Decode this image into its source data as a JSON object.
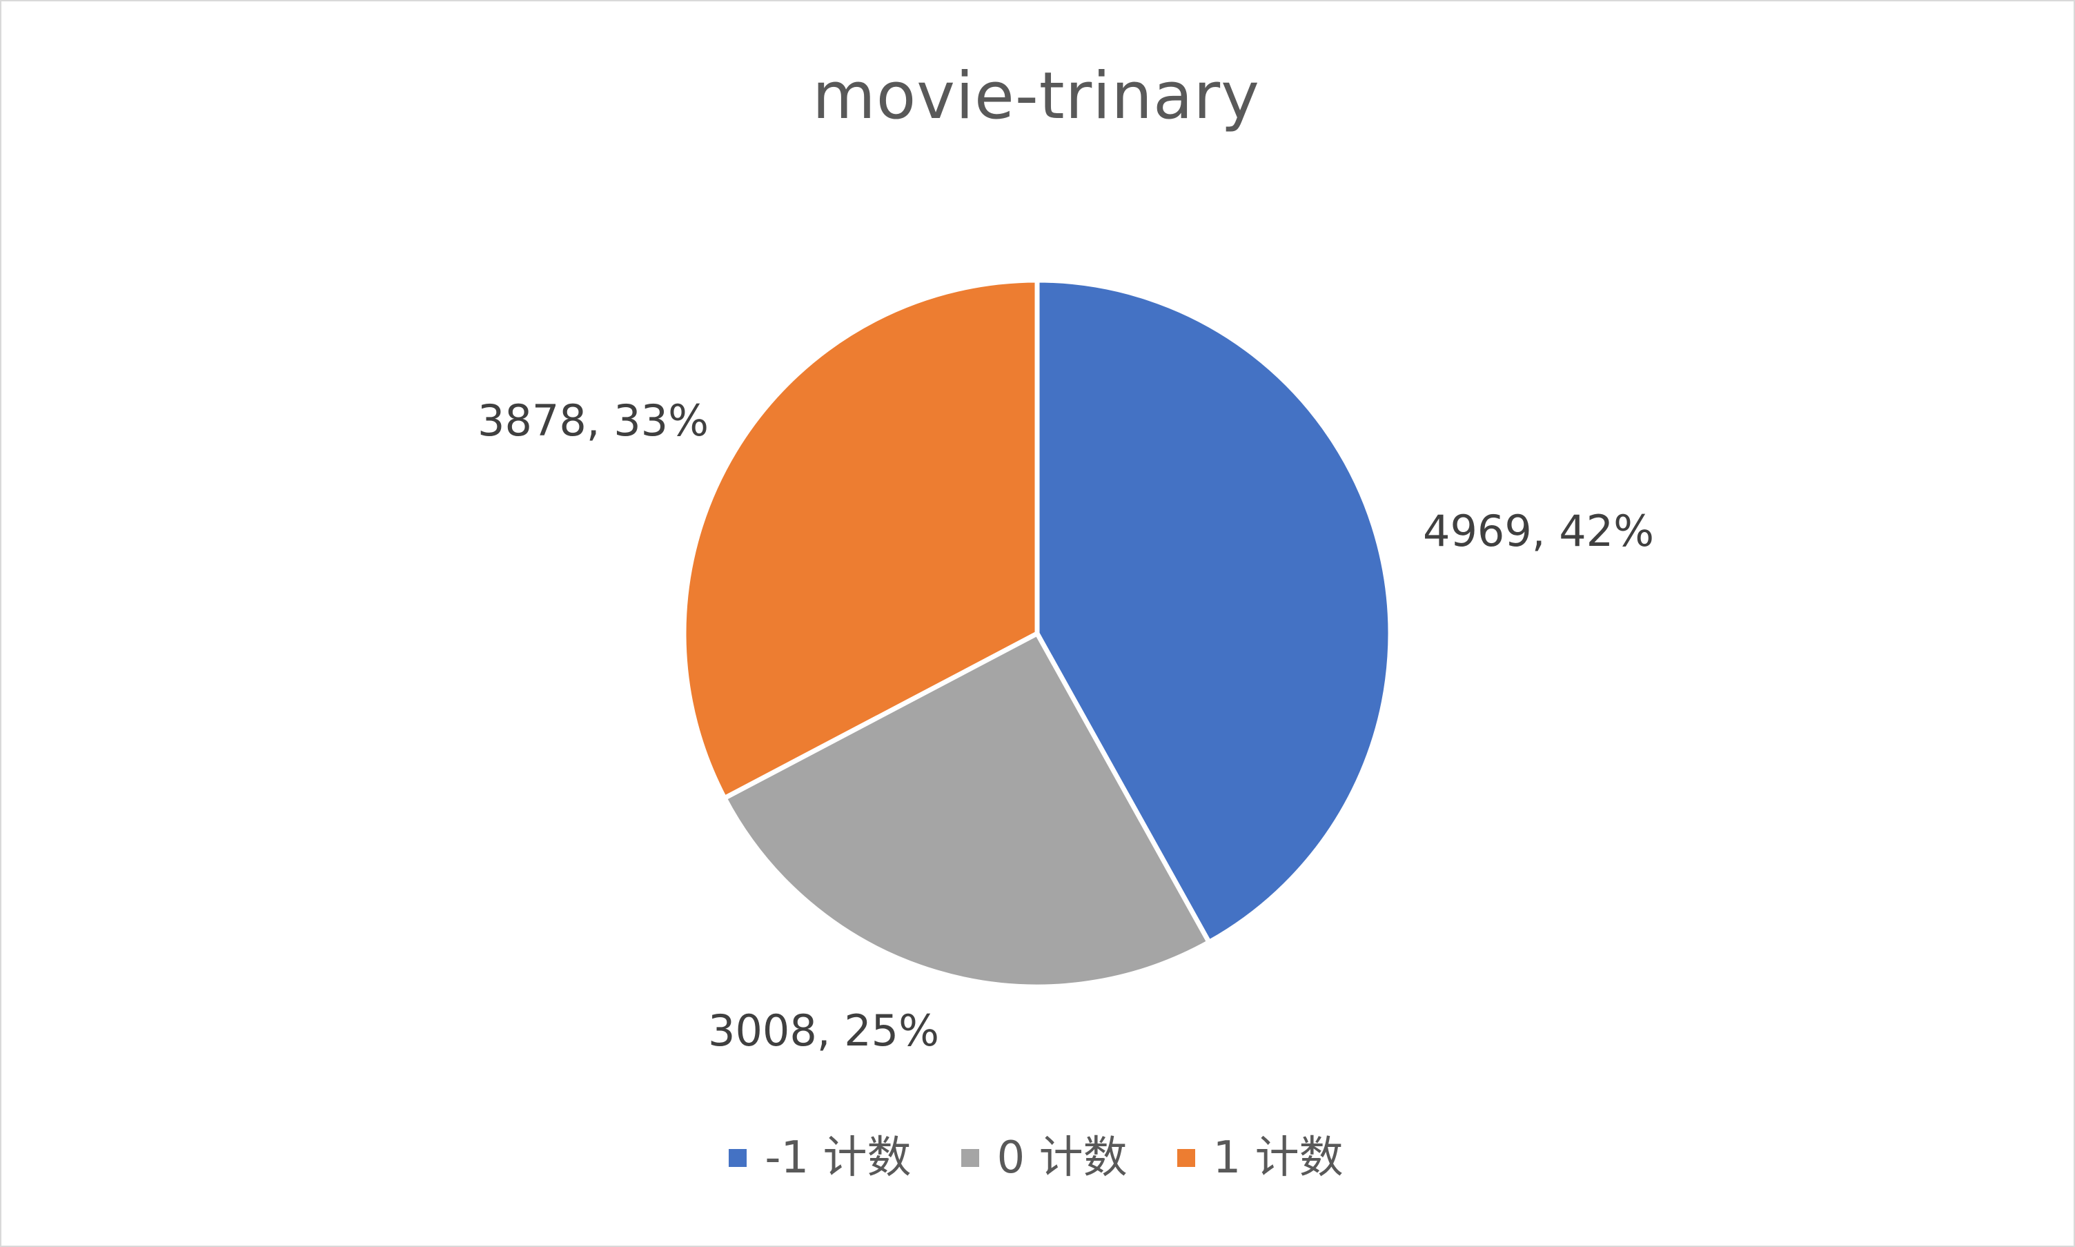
{
  "chart_data": {
    "type": "pie",
    "title": "movie-trinary",
    "categories": [
      "-1 计数",
      "0 计数",
      "1 计数"
    ],
    "values": [
      4969,
      3008,
      3878
    ],
    "percent_labels": [
      "42%",
      "25%",
      "33%"
    ],
    "data_labels": [
      "4969, 42%",
      "3008, 25%",
      "3878, 33%"
    ],
    "colors": [
      "#4472c4",
      "#a5a5a5",
      "#ed7d31"
    ],
    "start_angle": "12-o'clock",
    "direction": "clockwise",
    "legend_position": "bottom"
  }
}
